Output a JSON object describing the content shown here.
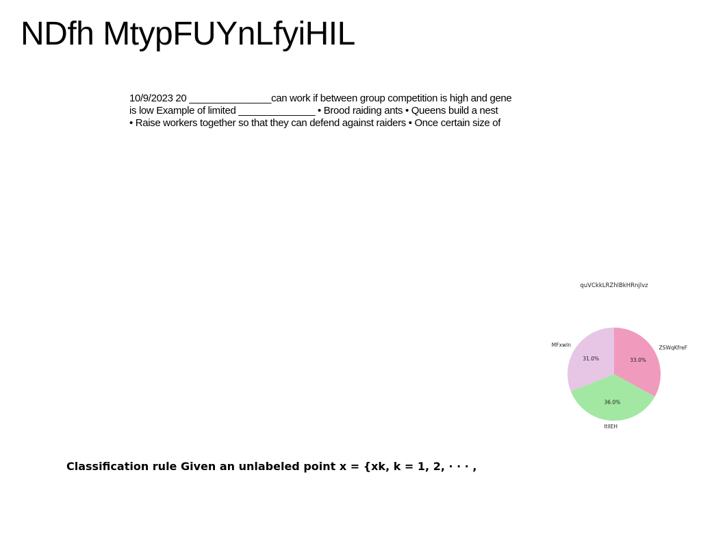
{
  "document": {
    "title": "NDfh MtypFUYnLfyiHIL",
    "paragraph_lines": [
      "10/9/2023 20 _______________can work if between group competition is high and gene",
      "is low Example of limited ______________ • Brood raiding ants • Queens build a nest",
      "• Raise workers together so that they can defend against raiders • Once certain size of"
    ],
    "classification_rule": "Classification rule Given an unlabeled point x = {xk, k = 1, 2, · · · ,"
  },
  "chart_data": {
    "type": "pie",
    "title": "quVCkkLRZhlBkHRnjlvz",
    "slices": [
      {
        "label": "ZSWqKfreF",
        "value": 33.0,
        "pct_label": "33.0%",
        "color": "#f09bbd"
      },
      {
        "label": "ltllEH",
        "value": 36.0,
        "pct_label": "36.0%",
        "color": "#a2e8a2"
      },
      {
        "label": "MFxwln",
        "value": 31.0,
        "pct_label": "31.0%",
        "color": "#e6c5e5"
      }
    ],
    "start_angle_deg": 90,
    "direction": "clockwise"
  }
}
